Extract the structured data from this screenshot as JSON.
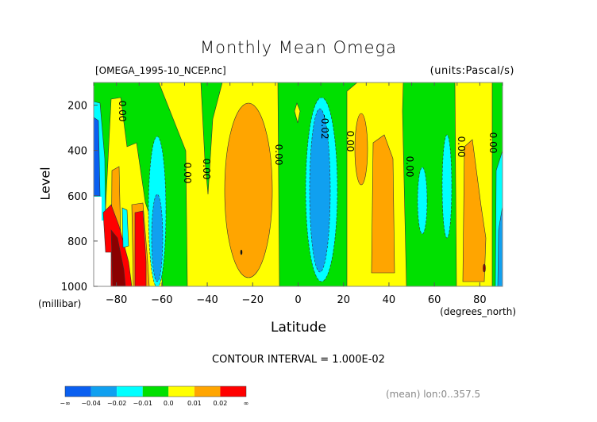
{
  "chart_data": {
    "type": "contour",
    "title": "Monthly Mean Omega",
    "file_label": "[OMEGA_1995-10_NCEP.nc]",
    "units_label": "(units:Pascal/s)",
    "xlabel": "Latitude",
    "xunits": "(degrees_north)",
    "ylabel": "Level",
    "yunits": "(millibar)",
    "xlim": [
      -90,
      90
    ],
    "ylim": [
      1000,
      100
    ],
    "xticks": [
      -80,
      -60,
      -40,
      -20,
      0,
      20,
      40,
      60,
      80
    ],
    "yticks": [
      200,
      400,
      600,
      800,
      1000
    ],
    "contour_interval": "CONTOUR INTERVAL = 1.000E-02",
    "subtitle": "(mean) lon:0..357.5",
    "contour_labels": [
      "0.00",
      "0.00",
      "0.00",
      "0.00",
      "-0.02",
      "0.00",
      "0.00",
      "0.00",
      "0.00"
    ],
    "colorbar": {
      "labels": [
        "-∞",
        "-0.04",
        "-0.02",
        "-0.01",
        "0.0",
        "0.01",
        "0.02",
        "∞"
      ],
      "colors": [
        "#0a5ff0",
        "#10a0f0",
        "#00ffff",
        "#00e000",
        "#ffff00",
        "#ffa500",
        "#ff0000"
      ]
    }
  }
}
